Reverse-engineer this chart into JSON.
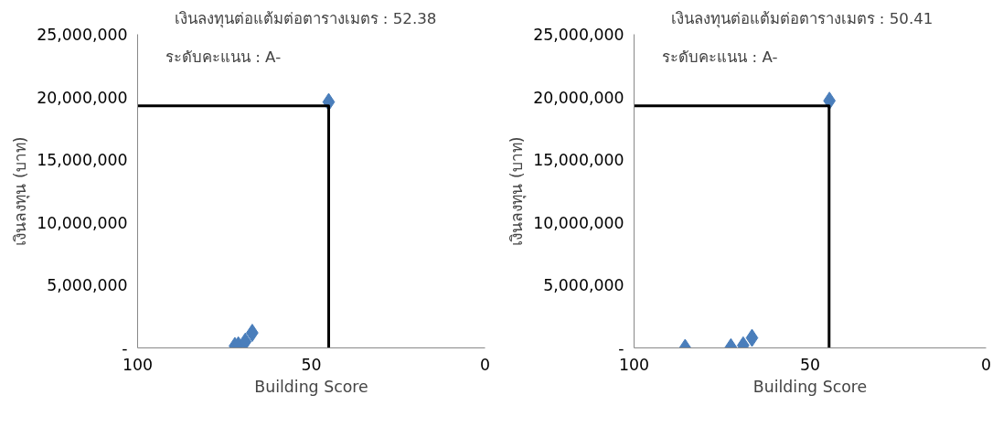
{
  "chart_data": [
    {
      "type": "scatter",
      "xlabel": "Building Score",
      "ylabel": "เงินลงทุน (บาท)",
      "annotations": [
        "เงินลงทุนต่อแต้มต่อตารางเมตร : 52.38",
        "ระดับคะแนน : A-"
      ],
      "xlim": [
        100,
        0
      ],
      "xticks": [
        100,
        50,
        0
      ],
      "ylim": [
        0,
        25000000
      ],
      "yticks": [
        {
          "value": 0,
          "label": "-"
        },
        {
          "value": 5000000,
          "label": "5,000,000"
        },
        {
          "value": 10000000,
          "label": "10,000,000"
        },
        {
          "value": 15000000,
          "label": "15,000,000"
        },
        {
          "value": 20000000,
          "label": "20,000,000"
        },
        {
          "value": 25000000,
          "label": "25,000,000"
        }
      ],
      "series": [
        {
          "color": "#4a7ebb",
          "marker": "diamond",
          "x": [
            72,
            71,
            69,
            67,
            45
          ],
          "values": [
            150000,
            200000,
            500000,
            1200000,
            19600000
          ]
        },
        {
          "type": "line",
          "marker": "none",
          "color": "#000000",
          "x": [
            100,
            45,
            45
          ],
          "values": [
            19300000,
            19300000,
            0
          ]
        }
      ]
    },
    {
      "type": "scatter",
      "xlabel": "Building Score",
      "ylabel": "เงินลงทุน (บาท)",
      "annotations": [
        "เงินลงทุนต่อแต้มต่อตารางเมตร : 50.41",
        "ระดับคะแนน : A-"
      ],
      "xlim": [
        100,
        0
      ],
      "xticks": [
        100,
        50,
        0
      ],
      "ylim": [
        0,
        25000000
      ],
      "yticks": [
        {
          "value": 0,
          "label": "-"
        },
        {
          "value": 5000000,
          "label": "5,000,000"
        },
        {
          "value": 10000000,
          "label": "10,000,000"
        },
        {
          "value": 15000000,
          "label": "15,000,000"
        },
        {
          "value": 20000000,
          "label": "20,000,000"
        },
        {
          "value": 25000000,
          "label": "25,000,000"
        }
      ],
      "series": [
        {
          "color": "#4a7ebb",
          "marker": "diamond",
          "x": [
            85.5,
            72.5,
            69,
            66.5,
            44.5
          ],
          "values": [
            0,
            50000,
            200000,
            800000,
            19700000
          ]
        },
        {
          "type": "line",
          "marker": "none",
          "color": "#000000",
          "x": [
            100,
            44.6,
            44.6
          ],
          "values": [
            19300000,
            19300000,
            0
          ]
        }
      ]
    }
  ]
}
